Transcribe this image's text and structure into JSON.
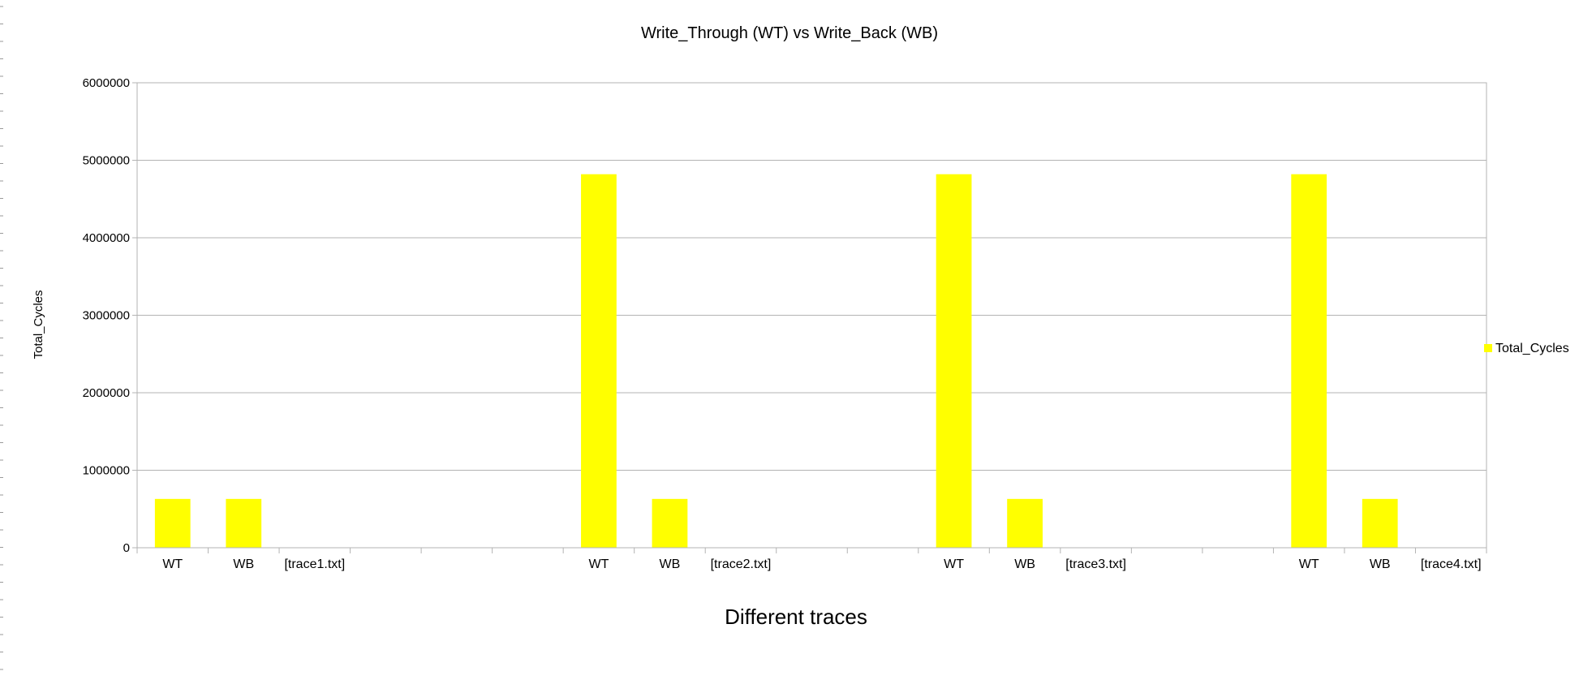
{
  "chart_data": {
    "type": "bar",
    "title": "Write_Through  (WT) vs Write_Back  (WB)",
    "xlabel": "Different traces",
    "ylabel": "Total_Cycles",
    "ylim": [
      0,
      6000000
    ],
    "yticks": [
      "0",
      "1000000",
      "2000000",
      "3000000",
      "4000000",
      "5000000",
      "6000000"
    ],
    "grid": true,
    "legend_position": "right",
    "bar_color": "#ffff00",
    "categories": [
      "WT",
      "WB",
      "[trace1.txt]",
      "",
      "",
      "",
      "WT",
      "WB",
      "[trace2.txt]",
      "",
      "",
      "WT",
      "WB",
      "[trace3.txt]",
      "",
      "",
      "WT",
      "WB",
      "[trace4.txt]"
    ],
    "series": [
      {
        "name": "Total_Cycles",
        "values": [
          630000,
          630000,
          null,
          null,
          null,
          null,
          4820000,
          630000,
          null,
          null,
          null,
          4820000,
          630000,
          null,
          null,
          null,
          4820000,
          630000,
          null
        ]
      }
    ]
  }
}
